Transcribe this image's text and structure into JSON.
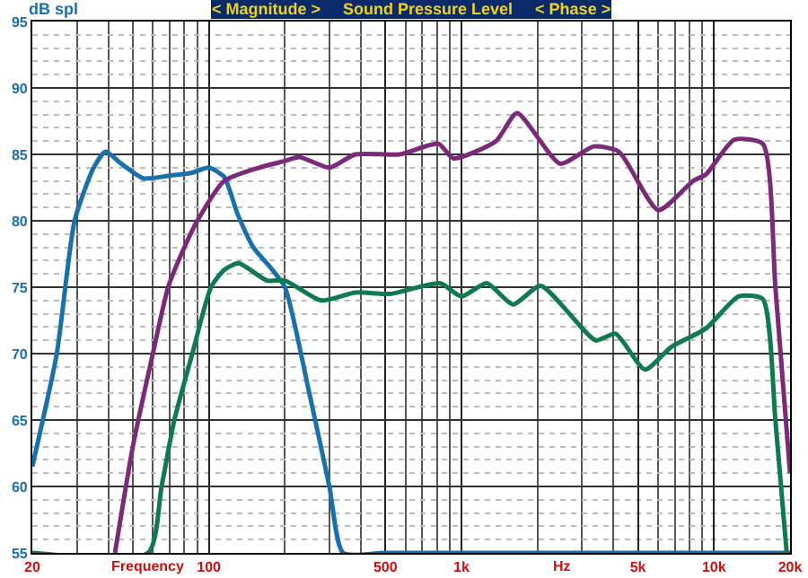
{
  "chart_data": {
    "type": "line",
    "title": "< Magnitude >     Sound Pressure Level     < Phase >",
    "xlabel": "Frequency",
    "ylabel": "dB spl",
    "annotations": [
      "Hz"
    ],
    "log": "x",
    "grid": true,
    "line_style": "solid",
    "marker": "none",
    "xlim": [
      20,
      20000
    ],
    "xticks": [
      20,
      100,
      500,
      {
        "value": 1000,
        "label": "1k"
      },
      {
        "value": 5000,
        "label": "5k"
      },
      {
        "value": 10000,
        "label": "10k"
      },
      {
        "value": 20000,
        "label": "20k"
      }
    ],
    "ylim": [
      55,
      95
    ],
    "yticks": [
      55,
      60,
      65,
      70,
      75,
      80,
      85,
      90,
      95
    ],
    "series": [
      {
        "color": "#1a70aa",
        "x": [
          20,
          25,
          29.4,
          35,
          39,
          45,
          55,
          70,
          85,
          100,
          115,
          130,
          150,
          175,
          200,
          250,
          300,
          340,
          500,
          1000,
          5000,
          20000
        ],
        "values": [
          61.5,
          70,
          80,
          84,
          85.2,
          84.3,
          83.2,
          83.4,
          83.6,
          84,
          83.3,
          80.5,
          78,
          76.5,
          75,
          67,
          60,
          55,
          55,
          55,
          55,
          55
        ]
      },
      {
        "color": "#7a2a78",
        "x": [
          42.5,
          50,
          60,
          69,
          80,
          90,
          115,
          158,
          200,
          228,
          300,
          380,
          570,
          810,
          930,
          1370,
          1660,
          2460,
          3340,
          4200,
          6020,
          8270,
          9300,
          12000,
          15600,
          17500,
          20000
        ],
        "values": [
          55,
          63,
          70,
          75,
          78,
          80,
          83,
          84,
          84.5,
          84.8,
          84,
          85,
          85,
          85.8,
          84.7,
          86,
          88.1,
          84.3,
          85.6,
          85.2,
          80.8,
          83,
          83.5,
          86.1,
          85.8,
          75,
          61
        ]
      },
      {
        "color": "#0f7a50",
        "x": [
          20,
          57.5,
          65,
          73,
          86,
          102,
          115,
          131,
          170,
          200,
          278,
          380,
          526,
          822,
          1000,
          1260,
          1600,
          2060,
          3400,
          4080,
          5330,
          6770,
          9300,
          12500,
          15600,
          17500,
          19400
        ],
        "values": [
          55,
          55,
          60,
          65,
          70,
          75,
          76.3,
          76.8,
          75.5,
          75.5,
          74,
          74.6,
          74.5,
          75.3,
          74.3,
          75.3,
          73.7,
          75.1,
          71,
          71.5,
          68.8,
          70.5,
          71.9,
          74.3,
          74.1,
          65,
          55
        ]
      }
    ]
  }
}
